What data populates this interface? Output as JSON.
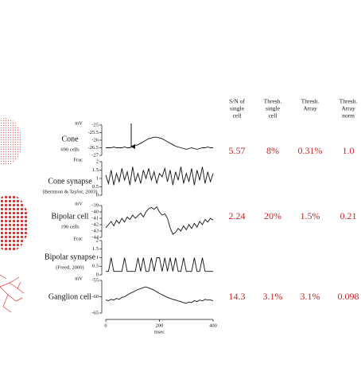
{
  "table": {
    "header": [
      [
        "S/N of",
        "single",
        "cell"
      ],
      [
        "Thresh.",
        "single",
        "cell"
      ],
      [
        "Thresh.",
        "Array"
      ],
      [
        "Thresh.",
        "Array",
        "norm"
      ]
    ],
    "rows": [
      [
        "5.57",
        "8%",
        "0.31%",
        "1.0"
      ],
      [
        "2.24",
        "20%",
        "1.5%",
        "0.21"
      ],
      [
        "14.3",
        "3.1%",
        "3.1%",
        "0.098"
      ]
    ]
  },
  "time_ms": [
    0,
    10,
    20,
    30,
    40,
    50,
    60,
    70,
    80,
    90,
    100,
    110,
    120,
    130,
    140,
    150,
    160,
    170,
    180,
    190,
    200,
    210,
    220,
    230,
    240,
    250,
    260,
    270,
    280,
    290,
    300,
    310,
    320,
    330,
    340,
    350,
    360,
    370,
    380,
    390,
    400
  ],
  "xticks": [
    0,
    200,
    400
  ],
  "xlim": [
    0,
    400
  ],
  "xlabel": "msec",
  "panels": [
    {
      "label": "Cone",
      "sublabel": "690 cells",
      "unit": "mV",
      "ylim": [
        -27,
        -25
      ],
      "yticks": [
        -25,
        -25.5,
        -26,
        -26.5,
        -27
      ],
      "values": [
        -26.5,
        -26.5,
        -26.5,
        -26.45,
        -26.5,
        -26.5,
        -26.5,
        -26.45,
        -26.5,
        -26.5,
        -26.4,
        -26.35,
        -26.3,
        -26.2,
        -26.1,
        -26,
        -25.9,
        -25.85,
        -25.8,
        -25.8,
        -25.85,
        -25.9,
        -26,
        -26.1,
        -26.2,
        -26.3,
        -26.4,
        -26.45,
        -26.5,
        -26.55,
        -26.6,
        -26.55,
        -26.5,
        -26.55,
        -26.6,
        -26.55,
        -26.5,
        -26.5,
        -26.45,
        -26.5,
        -26.5
      ]
    },
    {
      "label": "Cone synapse",
      "sublabel": "(Berntson & Taylor, 2003)",
      "unit": "Frac",
      "ylim": [
        0,
        2
      ],
      "yticks": [
        2,
        1.5,
        1,
        0.5,
        0
      ],
      "values": [
        1.2,
        0.7,
        1.5,
        0.6,
        1.3,
        0.8,
        1.6,
        0.9,
        1.4,
        0.6,
        1.7,
        0.8,
        1.3,
        0.7,
        1.5,
        1.0,
        1.6,
        0.9,
        1.4,
        0.7,
        1.3,
        1.1,
        1.6,
        0.8,
        1.5,
        0.6,
        1.4,
        0.9,
        1.7,
        0.7,
        1.3,
        0.8,
        1.6,
        0.6,
        1.5,
        0.9,
        1.7,
        0.7,
        1.4,
        0.8,
        1.3
      ]
    },
    {
      "label": "Bipolar cell",
      "sublabel": "190 cells",
      "unit": "mV",
      "ylim": [
        -44,
        -39
      ],
      "yticks": [
        -39,
        -40,
        -41,
        -42,
        -43,
        -44
      ],
      "values": [
        -42.5,
        -42,
        -41.5,
        -42.2,
        -41.3,
        -41.8,
        -41,
        -41.6,
        -40.8,
        -41.2,
        -40.5,
        -41,
        -40.6,
        -40.2,
        -40.8,
        -40,
        -39.5,
        -39.3,
        -39.6,
        -39.2,
        -40,
        -40.5,
        -40.3,
        -41,
        -42.5,
        -43.5,
        -43.2,
        -42.6,
        -43,
        -42.2,
        -42.8,
        -42,
        -42.6,
        -41.8,
        -42.4,
        -41.5,
        -42,
        -41.2,
        -41.6,
        -41,
        -41.3
      ]
    },
    {
      "label": "Bipolar synapse",
      "sublabel": "(Freed, 2000)",
      "unit": "Frac",
      "ylim": [
        0,
        2
      ],
      "yticks": [
        2,
        1.5,
        1,
        0.5,
        0
      ],
      "values": [
        0.2,
        0.2,
        1.0,
        0.2,
        0.2,
        0.2,
        0.2,
        1.0,
        0.2,
        0.2,
        0.2,
        0.2,
        1.0,
        0.2,
        1.0,
        0.2,
        0.2,
        1.0,
        0.2,
        1.0,
        1.0,
        0.2,
        1.0,
        0.2,
        1.0,
        0.2,
        1.0,
        0.2,
        0.2,
        1.0,
        0.2,
        0.2,
        0.2,
        1.0,
        0.2,
        0.2,
        1.0,
        0.2,
        0.2,
        0.2,
        0.2
      ]
    },
    {
      "label": "Ganglion cell",
      "sublabel": null,
      "unit": "mV",
      "ylim": [
        -65,
        -55
      ],
      "yticks": [
        -55,
        -60,
        -65
      ],
      "values": [
        -61,
        -61.2,
        -60.8,
        -61,
        -60.5,
        -60.8,
        -60.2,
        -60,
        -59.5,
        -59,
        -58.6,
        -58.2,
        -57.8,
        -57.5,
        -57.2,
        -57,
        -57.3,
        -57.6,
        -58,
        -58.5,
        -59,
        -59.4,
        -59.8,
        -60.2,
        -60.5,
        -60.8,
        -61,
        -61.3,
        -61.5,
        -61.8,
        -62,
        -61.6,
        -61.8,
        -61.2,
        -61.5,
        -61,
        -61.3,
        -60.8,
        -61,
        -61,
        -61.2
      ]
    }
  ]
}
